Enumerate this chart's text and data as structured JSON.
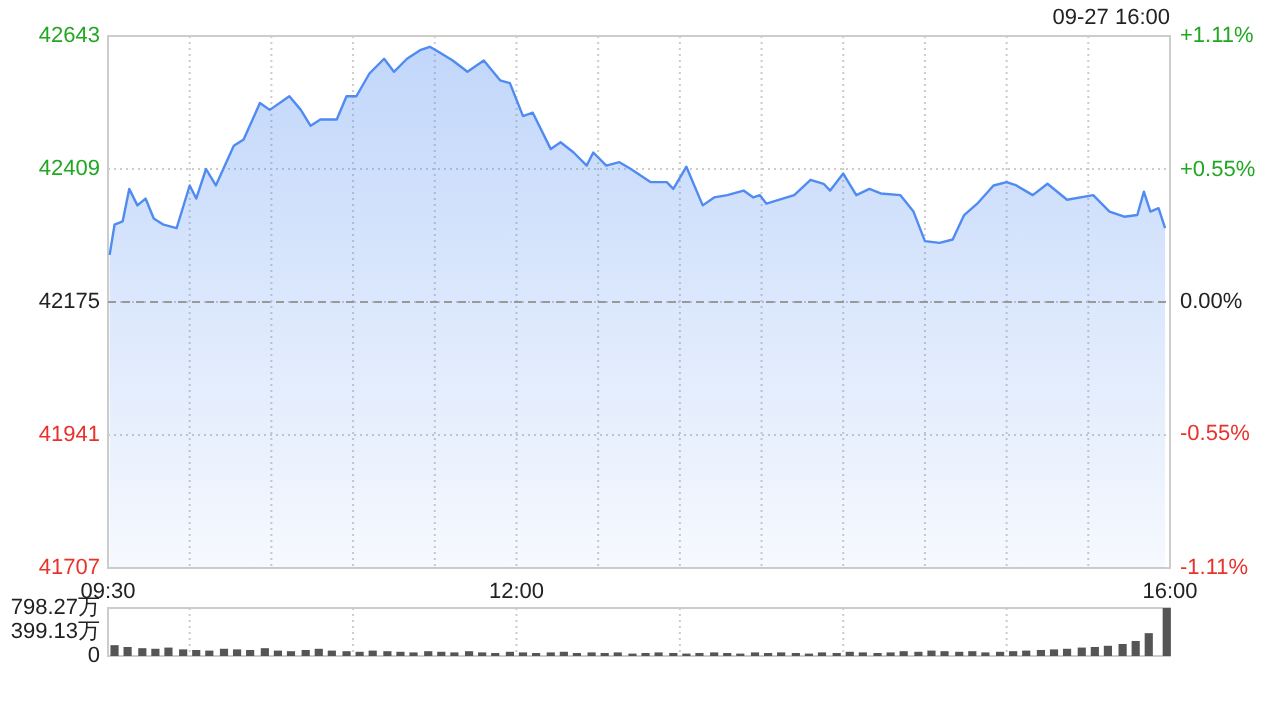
{
  "chart_data": [
    {
      "type": "area",
      "color": "#4f8bf2",
      "x": [
        9.51,
        9.54,
        9.59,
        9.63,
        9.68,
        9.73,
        9.78,
        9.84,
        9.92,
        10.0,
        10.04,
        10.1,
        10.16,
        10.27,
        10.33,
        10.43,
        10.49,
        10.61,
        10.68,
        10.74,
        10.8,
        10.9,
        10.96,
        11.02,
        11.1,
        11.19,
        11.25,
        11.33,
        11.41,
        11.47,
        11.53,
        11.61,
        11.7,
        11.8,
        11.9,
        11.96,
        12.04,
        12.1,
        12.21,
        12.27,
        12.35,
        12.43,
        12.47,
        12.55,
        12.63,
        12.7,
        12.82,
        12.92,
        12.96,
        13.04,
        13.14,
        13.21,
        13.29,
        13.39,
        13.45,
        13.49,
        13.53,
        13.61,
        13.7,
        13.8,
        13.88,
        13.92,
        14.0,
        14.08,
        14.16,
        14.23,
        14.35,
        14.43,
        14.5,
        14.59,
        14.67,
        14.74,
        14.82,
        14.92,
        15.0,
        15.06,
        15.16,
        15.25,
        15.37,
        15.53,
        15.63,
        15.72,
        15.8,
        15.84,
        15.88,
        15.93,
        15.97
      ],
      "values": [
        42258,
        42311,
        42317,
        42374,
        42345,
        42357,
        42322,
        42311,
        42305,
        42380,
        42357,
        42409,
        42380,
        42450,
        42461,
        42525,
        42513,
        42537,
        42513,
        42485,
        42496,
        42496,
        42537,
        42537,
        42577,
        42603,
        42580,
        42603,
        42618,
        42624,
        42614,
        42600,
        42580,
        42600,
        42565,
        42560,
        42502,
        42508,
        42444,
        42456,
        42438,
        42415,
        42438,
        42415,
        42421,
        42409,
        42386,
        42386,
        42374,
        42413,
        42345,
        42359,
        42363,
        42371,
        42359,
        42363,
        42348,
        42355,
        42363,
        42390,
        42383,
        42371,
        42401,
        42363,
        42374,
        42366,
        42363,
        42334,
        42282,
        42279,
        42285,
        42328,
        42348,
        42380,
        42386,
        42380,
        42363,
        42383,
        42355,
        42363,
        42334,
        42325,
        42328,
        42369,
        42334,
        42340,
        42305
      ],
      "xlim": [
        9.5,
        16
      ],
      "xticks": [
        {
          "value": 9.5,
          "label": "09:30"
        },
        {
          "value": 10,
          "label": null
        },
        {
          "value": 10.5,
          "label": null
        },
        {
          "value": 11,
          "label": null
        },
        {
          "value": 11.5,
          "label": null
        },
        {
          "value": 12,
          "label": "12:00"
        },
        {
          "value": 12.5,
          "label": null
        },
        {
          "value": 13,
          "label": null
        },
        {
          "value": 13.5,
          "label": null
        },
        {
          "value": 14,
          "label": null
        },
        {
          "value": 14.5,
          "label": null
        },
        {
          "value": 15,
          "label": null
        },
        {
          "value": 15.5,
          "label": null
        },
        {
          "value": 16,
          "label": "16:00"
        }
      ],
      "ylim": [
        41707,
        42643
      ],
      "yticks": [
        41707,
        41941,
        42175,
        42409,
        42643
      ],
      "y2lim": [
        -1.11,
        1.11
      ],
      "y2ticks": [
        {
          "value": -1.11,
          "label": "-1.11%"
        },
        {
          "value": -0.55,
          "label": "-0.55%"
        },
        {
          "value": 0,
          "label": "0.00%"
        },
        {
          "value": 0.55,
          "label": "+0.55%"
        },
        {
          "value": 1.11,
          "label": "+1.11%"
        }
      ],
      "ref_lines": [
        {
          "axis": "y",
          "value": 42175,
          "color": "#999999",
          "line_style": "dashed"
        }
      ],
      "grid": true,
      "annotations": [
        "09-27 16:00"
      ]
    },
    {
      "type": "bar",
      "color": "#555555",
      "x": [
        9.54,
        9.62,
        9.71,
        9.79,
        9.87,
        9.96,
        10.04,
        10.12,
        10.21,
        10.29,
        10.37,
        10.46,
        10.54,
        10.62,
        10.71,
        10.79,
        10.87,
        10.96,
        11.04,
        11.12,
        11.21,
        11.29,
        11.37,
        11.46,
        11.54,
        11.62,
        11.71,
        11.79,
        11.87,
        11.96,
        12.04,
        12.12,
        12.21,
        12.29,
        12.37,
        12.46,
        12.54,
        12.62,
        12.71,
        12.79,
        12.87,
        12.96,
        13.04,
        13.12,
        13.21,
        13.29,
        13.37,
        13.46,
        13.54,
        13.62,
        13.71,
        13.79,
        13.87,
        13.96,
        14.04,
        14.12,
        14.21,
        14.29,
        14.37,
        14.46,
        14.54,
        14.62,
        14.71,
        14.79,
        14.87,
        14.96,
        15.04,
        15.12,
        15.21,
        15.29,
        15.37,
        15.46,
        15.54,
        15.62,
        15.71,
        15.79,
        15.87,
        15.98
      ],
      "values": [
        180,
        150,
        130,
        120,
        140,
        110,
        100,
        90,
        120,
        110,
        100,
        130,
        90,
        80,
        100,
        120,
        90,
        80,
        70,
        90,
        80,
        70,
        60,
        80,
        70,
        60,
        80,
        60,
        50,
        70,
        60,
        50,
        60,
        70,
        50,
        60,
        50,
        60,
        40,
        50,
        60,
        50,
        40,
        50,
        60,
        50,
        40,
        60,
        50,
        60,
        50,
        40,
        60,
        50,
        70,
        60,
        50,
        60,
        80,
        70,
        90,
        80,
        70,
        80,
        60,
        70,
        80,
        90,
        100,
        110,
        120,
        140,
        150,
        170,
        200,
        250,
        380,
        798.27
      ],
      "xlim": [
        9.5,
        16
      ],
      "xticks": [
        {
          "value": 10,
          "label": null
        },
        {
          "value": 11,
          "label": null
        },
        {
          "value": 12,
          "label": null
        },
        {
          "value": 13,
          "label": null
        },
        {
          "value": 14,
          "label": null
        },
        {
          "value": 15,
          "label": null
        }
      ],
      "ylim": [
        0,
        798.27
      ],
      "yticks": [
        0,
        {
          "value": 399.13,
          "label": "399.13万"
        },
        {
          "value": 798.27,
          "label": "798.27万"
        }
      ],
      "tick_labels": "y",
      "grid": "x"
    }
  ]
}
